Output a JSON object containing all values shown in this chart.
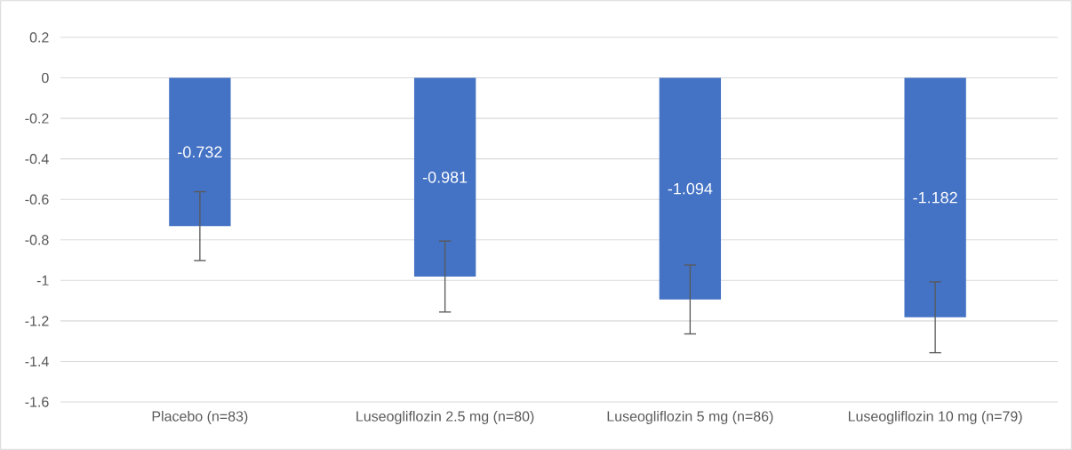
{
  "chart_data": {
    "type": "bar",
    "categories": [
      "Placebo (n=83)",
      "Luseogliflozin 2.5 mg (n=80)",
      "Luseogliflozin 5 mg (n=86)",
      "Luseogliflozin 10 mg (n=79)"
    ],
    "values": [
      -0.732,
      -0.981,
      -1.094,
      -1.182
    ],
    "value_labels": [
      "-0.732",
      "-0.981",
      "-1.094",
      "-1.182"
    ],
    "errors": [
      0.17,
      0.175,
      0.17,
      0.175
    ],
    "color": "#4472c4",
    "ylim": [
      -1.6,
      0.2
    ],
    "yticks": [
      0.2,
      0,
      -0.2,
      -0.4,
      -0.6,
      -0.8,
      -1,
      -1.2,
      -1.4,
      -1.6
    ],
    "grid": "y"
  }
}
